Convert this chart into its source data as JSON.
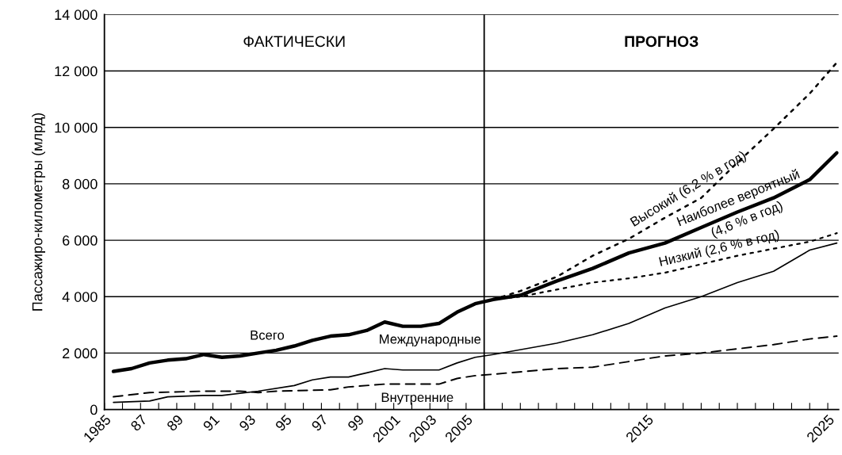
{
  "chart_data": {
    "type": "line",
    "ylabel": "Пассажиро-километры (млрд)",
    "annotations": [
      "ФАКТИЧЕСКИ",
      "ПРОГНОЗ",
      {
        "text": "Наиболее вероятный\n(4,6 % в год)",
        "x": 2020.3,
        "y": 7100
      }
    ],
    "xlim": [
      1985,
      2025.6
    ],
    "ylim": [
      0,
      14000
    ],
    "xticks": [
      {
        "value": 1985,
        "label": "1985"
      },
      {
        "value": 1986,
        "label": null
      },
      {
        "value": 1987,
        "label": "87"
      },
      {
        "value": 1988,
        "label": null
      },
      {
        "value": 1989,
        "label": "89"
      },
      {
        "value": 1990,
        "label": null
      },
      {
        "value": 1991,
        "label": "91"
      },
      {
        "value": 1992,
        "label": null
      },
      {
        "value": 1993,
        "label": "93"
      },
      {
        "value": 1994,
        "label": null
      },
      {
        "value": 1995,
        "label": "95"
      },
      {
        "value": 1996,
        "label": null
      },
      {
        "value": 1997,
        "label": "97"
      },
      {
        "value": 1998,
        "label": null
      },
      {
        "value": 1999,
        "label": "99"
      },
      {
        "value": 2000,
        "label": null
      },
      {
        "value": 2001,
        "label": "2001"
      },
      {
        "value": 2002,
        "label": null
      },
      {
        "value": 2003,
        "label": "2003"
      },
      {
        "value": 2004,
        "label": null
      },
      {
        "value": 2005,
        "label": "2005"
      },
      {
        "value": 2006,
        "label": null
      },
      {
        "value": 2007,
        "label": null
      },
      {
        "value": 2008,
        "label": null
      },
      {
        "value": 2009,
        "label": null
      },
      {
        "value": 2010,
        "label": null
      },
      {
        "value": 2011,
        "label": null
      },
      {
        "value": 2012,
        "label": null
      },
      {
        "value": 2013,
        "label": null
      },
      {
        "value": 2014,
        "label": null
      },
      {
        "value": 2015,
        "label": "2015"
      },
      {
        "value": 2016,
        "label": null
      },
      {
        "value": 2017,
        "label": null
      },
      {
        "value": 2018,
        "label": null
      },
      {
        "value": 2019,
        "label": null
      },
      {
        "value": 2020,
        "label": null
      },
      {
        "value": 2021,
        "label": null
      },
      {
        "value": 2022,
        "label": null
      },
      {
        "value": 2023,
        "label": null
      },
      {
        "value": 2024,
        "label": null
      },
      {
        "value": 2025,
        "label": "2025"
      }
    ],
    "yticks": [
      {
        "value": 0,
        "label": "0"
      },
      {
        "value": 2000,
        "label": "2 000"
      },
      {
        "value": 4000,
        "label": "4 000"
      },
      {
        "value": 6000,
        "label": "6 000"
      },
      {
        "value": 8000,
        "label": "8 000"
      },
      {
        "value": 10000,
        "label": "10 000"
      },
      {
        "value": 12000,
        "label": "12 000"
      },
      {
        "value": 14000,
        "label": "14 000"
      }
    ],
    "grid": "y",
    "legend": false,
    "ref_lines": [
      {
        "axis": "x",
        "value": 2006,
        "label": null,
        "color": "#000000",
        "line_style": "solid"
      }
    ],
    "series": [
      {
        "name": "Всего",
        "color": "#000000",
        "line_style": "solid",
        "x": [
          1985.5,
          1986.5,
          1987.5,
          1988.5,
          1989.5,
          1990.5,
          1991.5,
          1992.5,
          1993.5,
          1994.5,
          1995.5,
          1996.5,
          1997.5,
          1998.5,
          1999.5,
          2000.5,
          2001.5,
          2002.5,
          2003.5,
          2004.5,
          2005.5,
          2006.5,
          2008,
          2010,
          2012,
          2014,
          2016,
          2018,
          2020,
          2022,
          2024,
          2025.5
        ],
        "values": [
          1350,
          1450,
          1650,
          1750,
          1800,
          1950,
          1850,
          1900,
          2000,
          2100,
          2250,
          2450,
          2600,
          2650,
          2800,
          3100,
          2950,
          2950,
          3050,
          3450,
          3750,
          3900,
          4050,
          4550,
          5000,
          5550,
          5900,
          6450,
          7000,
          7500,
          8150,
          9100
        ]
      },
      {
        "name": "Высокий (6,2 % в год)",
        "color": "#000000",
        "line_style": "dotted",
        "x": [
          2006.5,
          2008,
          2010,
          2012,
          2014,
          2016,
          2018,
          2020,
          2022,
          2024,
          2025.5
        ],
        "values": [
          3900,
          4200,
          4700,
          5450,
          6050,
          6800,
          7500,
          8750,
          9950,
          11200,
          12300
        ]
      },
      {
        "name": "Низкий (2,6 % в год)",
        "color": "#000000",
        "line_style": "dotted",
        "x": [
          2006.5,
          2008,
          2010,
          2012,
          2014,
          2016,
          2018,
          2020,
          2022,
          2024,
          2025.5
        ],
        "values": [
          3900,
          4000,
          4250,
          4500,
          4650,
          4850,
          5150,
          5450,
          5700,
          5950,
          6250
        ]
      },
      {
        "name": "Международные",
        "color": "#000000",
        "line_style": "solid",
        "x": [
          1985.5,
          1987.5,
          1988.5,
          1990.5,
          1991.5,
          1993.5,
          1995.5,
          1996.5,
          1997.5,
          1998.5,
          1999.5,
          2000.5,
          2001.5,
          2003.5,
          2004.5,
          2005.5,
          2006.5,
          2010,
          2012,
          2014,
          2016,
          2018,
          2020,
          2022,
          2024,
          2025.5
        ],
        "values": [
          250,
          300,
          450,
          500,
          500,
          650,
          850,
          1050,
          1150,
          1150,
          1300,
          1450,
          1400,
          1400,
          1650,
          1850,
          1950,
          2350,
          2650,
          3050,
          3600,
          4000,
          4500,
          4900,
          5650,
          5900
        ]
      },
      {
        "name": "Внутренние",
        "color": "#000000",
        "line_style": "dashed",
        "x": [
          1985.5,
          1987.5,
          1990.5,
          1992.5,
          1993.5,
          1994.5,
          1997.5,
          1998.5,
          2000.5,
          2003.5,
          2004.5,
          2005.5,
          2006.5,
          2010,
          2012,
          2014,
          2016,
          2018,
          2020,
          2022,
          2024,
          2025.5
        ],
        "values": [
          450,
          600,
          650,
          650,
          600,
          650,
          700,
          800,
          900,
          900,
          1100,
          1200,
          1250,
          1450,
          1500,
          1700,
          1900,
          2000,
          2150,
          2300,
          2500,
          2600
        ]
      }
    ]
  }
}
